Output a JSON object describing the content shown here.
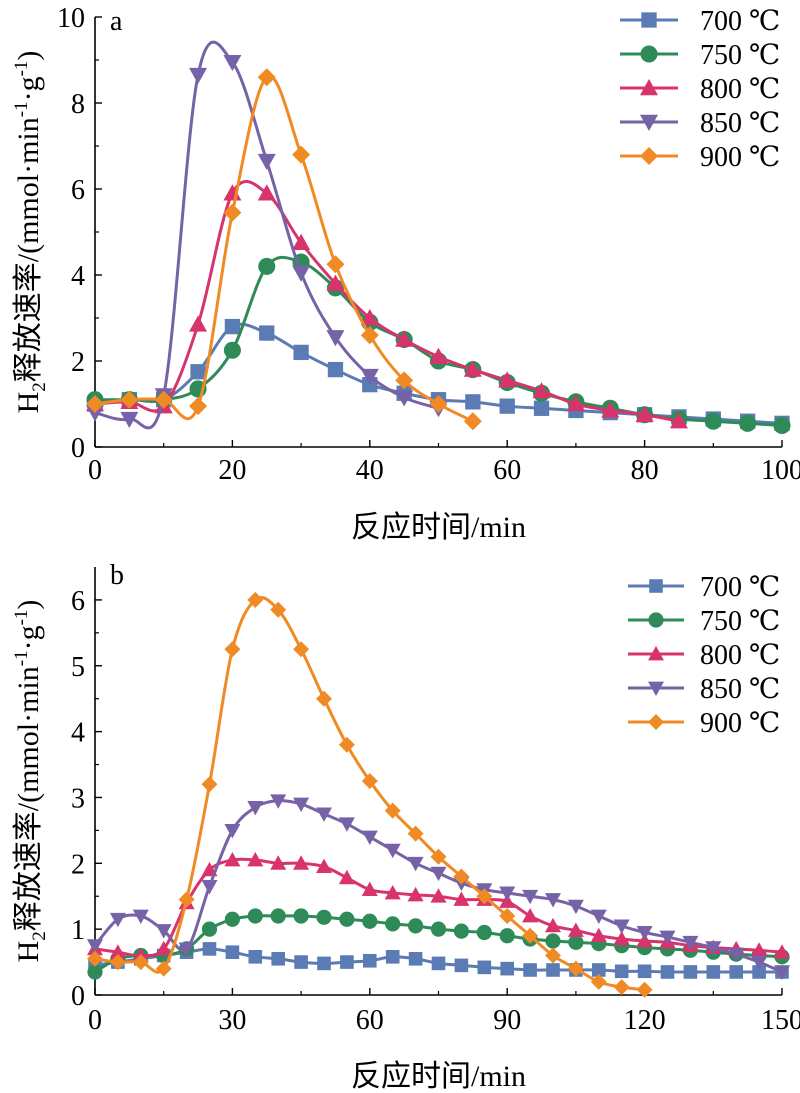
{
  "chart_data": [
    {
      "type": "line",
      "panel_label": "a",
      "xlabel": "反应时间/min",
      "ylabel": "H₂释放速率/(mmol·min⁻¹·g⁻¹)",
      "ylabel_parts": {
        "pre": "H",
        "sub": "2",
        "mid": "释放速率/(mmol·min",
        "sup1": "-1",
        "dot": "·g",
        "sup2": "-1",
        "post": ")"
      },
      "xlim": [
        0,
        100
      ],
      "ylim": [
        0,
        10
      ],
      "xticks": [
        0,
        20,
        40,
        60,
        80,
        100
      ],
      "yticks": [
        0,
        2,
        4,
        6,
        8,
        10
      ],
      "grid": false,
      "legend_position": "top-right",
      "series": [
        {
          "name": "700 ℃",
          "marker": "square",
          "color": "#5b7bb4",
          "points": [
            [
              0,
              1.0
            ],
            [
              5,
              1.1
            ],
            [
              10,
              1.1
            ],
            [
              15,
              1.75
            ],
            [
              20,
              2.8
            ],
            [
              25,
              2.65
            ],
            [
              30,
              2.2
            ],
            [
              35,
              1.8
            ],
            [
              40,
              1.45
            ],
            [
              45,
              1.25
            ],
            [
              50,
              1.1
            ],
            [
              55,
              1.05
            ],
            [
              60,
              0.95
            ],
            [
              65,
              0.9
            ],
            [
              70,
              0.85
            ],
            [
              75,
              0.8
            ],
            [
              80,
              0.75
            ],
            [
              85,
              0.7
            ],
            [
              90,
              0.65
            ],
            [
              95,
              0.6
            ],
            [
              100,
              0.55
            ]
          ]
        },
        {
          "name": "750 ℃",
          "marker": "circle",
          "color": "#2e8b57",
          "points": [
            [
              0,
              1.1
            ],
            [
              5,
              1.1
            ],
            [
              10,
              1.1
            ],
            [
              15,
              1.35
            ],
            [
              20,
              2.25
            ],
            [
              25,
              4.2
            ],
            [
              30,
              4.3
            ],
            [
              35,
              3.7
            ],
            [
              40,
              2.9
            ],
            [
              45,
              2.5
            ],
            [
              50,
              2.0
            ],
            [
              55,
              1.8
            ],
            [
              60,
              1.5
            ],
            [
              65,
              1.25
            ],
            [
              70,
              1.05
            ],
            [
              75,
              0.9
            ],
            [
              80,
              0.75
            ],
            [
              85,
              0.65
            ],
            [
              90,
              0.6
            ],
            [
              95,
              0.55
            ],
            [
              100,
              0.5
            ]
          ]
        },
        {
          "name": "800 ℃",
          "marker": "triangle-up",
          "color": "#d9336e",
          "points": [
            [
              0,
              1.0
            ],
            [
              5,
              1.05
            ],
            [
              10,
              0.95
            ],
            [
              15,
              2.85
            ],
            [
              20,
              5.9
            ],
            [
              25,
              5.9
            ],
            [
              30,
              4.75
            ],
            [
              35,
              3.8
            ],
            [
              40,
              3.0
            ],
            [
              45,
              2.5
            ],
            [
              50,
              2.1
            ],
            [
              55,
              1.8
            ],
            [
              60,
              1.55
            ],
            [
              65,
              1.3
            ],
            [
              70,
              1.0
            ],
            [
              75,
              0.85
            ],
            [
              80,
              0.75
            ],
            [
              85,
              0.6
            ]
          ]
        },
        {
          "name": "850 ℃",
          "marker": "triangle-down",
          "color": "#7662a6",
          "points": [
            [
              0,
              0.8
            ],
            [
              5,
              0.65
            ],
            [
              10,
              1.2
            ],
            [
              15,
              8.65
            ],
            [
              20,
              8.95
            ],
            [
              25,
              6.65
            ],
            [
              30,
              4.05
            ],
            [
              35,
              2.55
            ],
            [
              40,
              1.65
            ],
            [
              45,
              1.15
            ],
            [
              50,
              0.9
            ]
          ]
        },
        {
          "name": "900 ℃",
          "marker": "diamond",
          "color": "#f08a24",
          "points": [
            [
              0,
              1.0
            ],
            [
              5,
              1.1
            ],
            [
              10,
              1.1
            ],
            [
              15,
              0.95
            ],
            [
              20,
              5.45
            ],
            [
              25,
              8.6
            ],
            [
              30,
              6.8
            ],
            [
              35,
              4.25
            ],
            [
              40,
              2.6
            ],
            [
              45,
              1.55
            ],
            [
              50,
              1.0
            ],
            [
              55,
              0.6
            ]
          ]
        }
      ]
    },
    {
      "type": "line",
      "panel_label": "b",
      "xlabel": "反应时间/min",
      "ylabel": "H₂释放速率/(mmol·min⁻¹·g⁻¹)",
      "ylabel_parts": {
        "pre": "H",
        "sub": "2",
        "mid": "释放速率/(mmol·min",
        "sup1": "-1",
        "dot": "·g",
        "sup2": "-1",
        "post": ")"
      },
      "xlim": [
        0,
        150
      ],
      "ylim": [
        0,
        6.5
      ],
      "xticks": [
        0,
        30,
        60,
        90,
        120,
        150
      ],
      "yticks": [
        0,
        1,
        2,
        3,
        4,
        5,
        6
      ],
      "grid": false,
      "legend_position": "top-right",
      "series": [
        {
          "name": "700 ℃",
          "marker": "square",
          "color": "#5b7bb4",
          "points": [
            [
              0,
              0.45
            ],
            [
              5,
              0.5
            ],
            [
              10,
              0.55
            ],
            [
              15,
              0.6
            ],
            [
              20,
              0.65
            ],
            [
              25,
              0.7
            ],
            [
              30,
              0.65
            ],
            [
              35,
              0.58
            ],
            [
              40,
              0.55
            ],
            [
              45,
              0.5
            ],
            [
              50,
              0.48
            ],
            [
              55,
              0.5
            ],
            [
              60,
              0.52
            ],
            [
              65,
              0.58
            ],
            [
              70,
              0.55
            ],
            [
              75,
              0.48
            ],
            [
              80,
              0.45
            ],
            [
              85,
              0.42
            ],
            [
              90,
              0.4
            ],
            [
              95,
              0.38
            ],
            [
              100,
              0.38
            ],
            [
              105,
              0.38
            ],
            [
              110,
              0.38
            ],
            [
              115,
              0.36
            ],
            [
              120,
              0.36
            ],
            [
              125,
              0.35
            ],
            [
              130,
              0.35
            ],
            [
              135,
              0.35
            ],
            [
              140,
              0.35
            ],
            [
              145,
              0.35
            ],
            [
              150,
              0.35
            ]
          ]
        },
        {
          "name": "750 ℃",
          "marker": "circle",
          "color": "#2e8b57",
          "points": [
            [
              0,
              0.35
            ],
            [
              5,
              0.55
            ],
            [
              10,
              0.6
            ],
            [
              15,
              0.6
            ],
            [
              20,
              0.7
            ],
            [
              25,
              1.0
            ],
            [
              30,
              1.15
            ],
            [
              35,
              1.2
            ],
            [
              40,
              1.2
            ],
            [
              45,
              1.2
            ],
            [
              50,
              1.18
            ],
            [
              55,
              1.15
            ],
            [
              60,
              1.12
            ],
            [
              65,
              1.08
            ],
            [
              70,
              1.05
            ],
            [
              75,
              1.0
            ],
            [
              80,
              0.97
            ],
            [
              85,
              0.95
            ],
            [
              90,
              0.9
            ],
            [
              95,
              0.85
            ],
            [
              100,
              0.82
            ],
            [
              105,
              0.8
            ],
            [
              110,
              0.78
            ],
            [
              115,
              0.75
            ],
            [
              120,
              0.72
            ],
            [
              125,
              0.7
            ],
            [
              130,
              0.68
            ],
            [
              135,
              0.65
            ],
            [
              140,
              0.62
            ],
            [
              145,
              0.6
            ],
            [
              150,
              0.58
            ]
          ]
        },
        {
          "name": "800 ℃",
          "marker": "triangle-up",
          "color": "#d9336e",
          "points": [
            [
              0,
              0.7
            ],
            [
              5,
              0.65
            ],
            [
              10,
              0.6
            ],
            [
              15,
              0.7
            ],
            [
              20,
              1.4
            ],
            [
              25,
              1.9
            ],
            [
              30,
              2.05
            ],
            [
              35,
              2.05
            ],
            [
              40,
              2.0
            ],
            [
              45,
              2.0
            ],
            [
              50,
              1.95
            ],
            [
              55,
              1.78
            ],
            [
              60,
              1.6
            ],
            [
              65,
              1.55
            ],
            [
              70,
              1.52
            ],
            [
              75,
              1.5
            ],
            [
              80,
              1.45
            ],
            [
              85,
              1.45
            ],
            [
              90,
              1.42
            ],
            [
              95,
              1.2
            ],
            [
              100,
              1.05
            ],
            [
              105,
              0.98
            ],
            [
              110,
              0.9
            ],
            [
              115,
              0.85
            ],
            [
              120,
              0.82
            ],
            [
              125,
              0.8
            ],
            [
              130,
              0.75
            ],
            [
              135,
              0.72
            ],
            [
              140,
              0.7
            ],
            [
              145,
              0.68
            ],
            [
              150,
              0.65
            ]
          ]
        },
        {
          "name": "850 ℃",
          "marker": "triangle-down",
          "color": "#7662a6",
          "points": [
            [
              0,
              0.75
            ],
            [
              5,
              1.15
            ],
            [
              10,
              1.2
            ],
            [
              15,
              0.98
            ],
            [
              20,
              0.7
            ],
            [
              25,
              1.65
            ],
            [
              30,
              2.5
            ],
            [
              35,
              2.85
            ],
            [
              40,
              2.95
            ],
            [
              45,
              2.9
            ],
            [
              50,
              2.75
            ],
            [
              55,
              2.6
            ],
            [
              60,
              2.4
            ],
            [
              65,
              2.2
            ],
            [
              70,
              2.0
            ],
            [
              75,
              1.85
            ],
            [
              80,
              1.7
            ],
            [
              85,
              1.6
            ],
            [
              90,
              1.55
            ],
            [
              95,
              1.5
            ],
            [
              100,
              1.45
            ],
            [
              105,
              1.35
            ],
            [
              110,
              1.2
            ],
            [
              115,
              1.05
            ],
            [
              120,
              0.95
            ],
            [
              125,
              0.88
            ],
            [
              130,
              0.8
            ],
            [
              135,
              0.72
            ],
            [
              140,
              0.62
            ],
            [
              145,
              0.5
            ],
            [
              150,
              0.35
            ]
          ]
        },
        {
          "name": "900 ℃",
          "marker": "diamond",
          "color": "#f08a24",
          "points": [
            [
              0,
              0.55
            ],
            [
              5,
              0.5
            ],
            [
              10,
              0.5
            ],
            [
              15,
              0.4
            ],
            [
              20,
              1.45
            ],
            [
              25,
              3.2
            ],
            [
              30,
              5.25
            ],
            [
              35,
              6.0
            ],
            [
              40,
              5.85
            ],
            [
              45,
              5.25
            ],
            [
              50,
              4.5
            ],
            [
              55,
              3.8
            ],
            [
              60,
              3.25
            ],
            [
              65,
              2.8
            ],
            [
              70,
              2.45
            ],
            [
              75,
              2.1
            ],
            [
              80,
              1.8
            ],
            [
              85,
              1.5
            ],
            [
              90,
              1.2
            ],
            [
              95,
              0.9
            ],
            [
              100,
              0.6
            ],
            [
              105,
              0.4
            ],
            [
              110,
              0.2
            ],
            [
              115,
              0.12
            ],
            [
              120,
              0.08
            ]
          ]
        }
      ]
    }
  ]
}
